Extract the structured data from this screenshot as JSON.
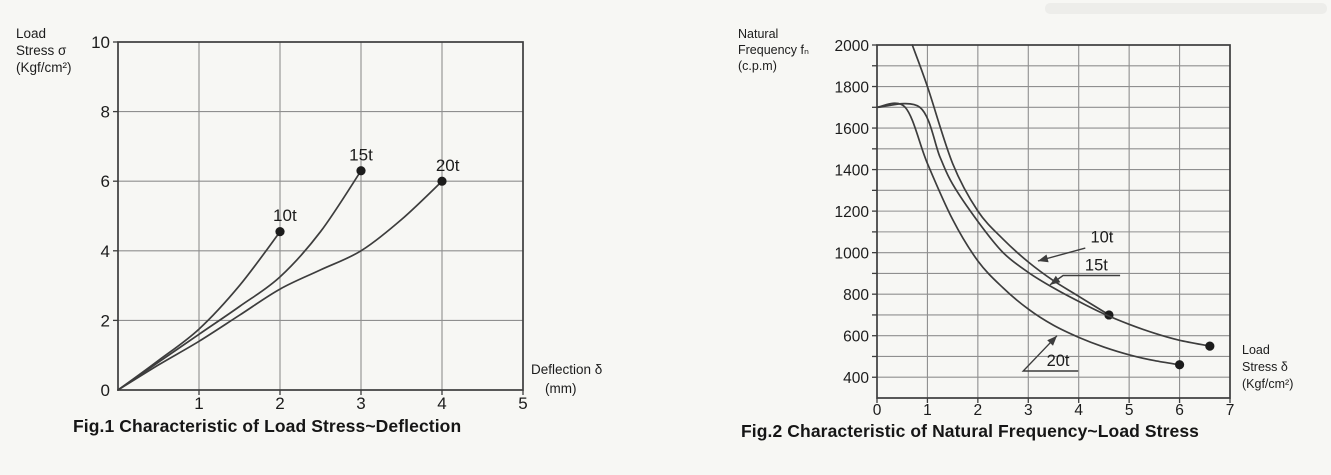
{
  "palette": {
    "ink": "#3d3d3d",
    "grid": "#8f8f8f",
    "text": "#1c1c1c",
    "dot": "#1c1c1c",
    "paper": "#f7f7f4"
  },
  "chart_data": [
    {
      "id": "load-stress-deflection",
      "type": "line",
      "caption": "Fig.1 Characteristic of Load Stress~Deflection",
      "x_axis": {
        "title_lines": [
          "Deflection δ",
          "(mm)"
        ],
        "min": 0,
        "max": 5,
        "tick_labels": [
          1,
          2,
          3,
          4,
          5
        ],
        "gridlines": [
          1,
          2,
          3,
          4
        ]
      },
      "y_axis": {
        "title_lines": [
          "Load",
          "Stress σ",
          "(Kgf/cm²)"
        ],
        "min": 0,
        "max": 10,
        "tick_labels": [
          0,
          2,
          4,
          6,
          8,
          10
        ],
        "tick_marks": [
          2,
          4,
          6,
          8,
          10
        ],
        "gridlines": [
          2,
          4,
          6,
          8
        ]
      },
      "series": [
        {
          "name": "10t",
          "points": [
            [
              0,
              0
            ],
            [
              0.5,
              0.85
            ],
            [
              1,
              1.75
            ],
            [
              1.5,
              3.0
            ],
            [
              2,
              4.55
            ]
          ],
          "end_dot": true,
          "label": {
            "x": 2.06,
            "y": 4.85
          }
        },
        {
          "name": "15t",
          "points": [
            [
              0,
              0
            ],
            [
              0.5,
              0.8
            ],
            [
              1,
              1.6
            ],
            [
              1.5,
              2.4
            ],
            [
              2,
              3.25
            ],
            [
              2.5,
              4.55
            ],
            [
              3,
              6.3
            ]
          ],
          "end_dot": true,
          "label": {
            "x": 3.0,
            "y": 6.6
          }
        },
        {
          "name": "20t",
          "points": [
            [
              0,
              0
            ],
            [
              0.5,
              0.72
            ],
            [
              1,
              1.4
            ],
            [
              1.5,
              2.15
            ],
            [
              2,
              2.9
            ],
            [
              2.5,
              3.45
            ],
            [
              3,
              4.0
            ],
            [
              3.5,
              4.9
            ],
            [
              4,
              6.0
            ]
          ],
          "end_dot": true,
          "label": {
            "x": 4.07,
            "y": 6.3
          }
        }
      ]
    },
    {
      "id": "natural-frequency-load-stress",
      "type": "line",
      "caption": "Fig.2 Characteristic of Natural Frequency~Load Stress",
      "x_axis": {
        "title_lines": [
          "Load",
          "Stress δ",
          "(Kgf/cm²)"
        ],
        "min": 0,
        "max": 7,
        "tick_labels": [
          0,
          1,
          2,
          3,
          4,
          5,
          6,
          7
        ],
        "gridlines": [
          1,
          2,
          3,
          4,
          5,
          6
        ]
      },
      "y_axis": {
        "title_lines": [
          "Natural",
          "Frequency fₙ",
          "(c.p.m)"
        ],
        "min": 300,
        "max": 2000,
        "tick_labels": [
          400,
          600,
          800,
          1000,
          1200,
          1400,
          1600,
          1800,
          2000
        ],
        "tick_marks": [
          400,
          500,
          600,
          700,
          800,
          900,
          1000,
          1100,
          1200,
          1300,
          1400,
          1500,
          1600,
          1700,
          1800,
          1900,
          2000
        ],
        "gridlines": [
          400,
          500,
          600,
          700,
          800,
          900,
          1000,
          1100,
          1200,
          1300,
          1400,
          1500,
          1600,
          1700,
          1800,
          1900
        ]
      },
      "series": [
        {
          "name": "10t",
          "points": [
            [
              0.7,
              2000
            ],
            [
              1,
              1800
            ],
            [
              1.5,
              1430
            ],
            [
              2,
              1200
            ],
            [
              2.5,
              1065
            ],
            [
              3,
              955
            ],
            [
              3.5,
              865
            ],
            [
              4,
              790
            ],
            [
              4.6,
              700
            ]
          ],
          "end_dot": true,
          "callout": {
            "text": {
              "x": 4.46,
              "y": 1050
            },
            "line": [
              [
                4.13,
                1022
              ],
              [
                3.19,
                960
              ]
            ]
          }
        },
        {
          "name": "15t",
          "points": [
            [
              0,
              1700
            ],
            [
              0.85,
              1700
            ],
            [
              1.25,
              1460
            ],
            [
              1.5,
              1330
            ],
            [
              2,
              1150
            ],
            [
              2.5,
              1000
            ],
            [
              3,
              905
            ],
            [
              3.5,
              830
            ],
            [
              4,
              765
            ],
            [
              4.5,
              705
            ],
            [
              5,
              655
            ],
            [
              5.5,
              612
            ],
            [
              6,
              578
            ],
            [
              6.6,
              550
            ]
          ],
          "end_dot": true,
          "callout": {
            "text": {
              "x": 4.35,
              "y": 915
            },
            "line": [
              [
                4.82,
                890
              ],
              [
                3.69,
                890
              ],
              [
                3.43,
                845
              ]
            ]
          }
        },
        {
          "name": "20t",
          "points": [
            [
              0,
              1700
            ],
            [
              0.56,
              1700
            ],
            [
              1,
              1430
            ],
            [
              1.5,
              1160
            ],
            [
              2,
              960
            ],
            [
              2.5,
              830
            ],
            [
              3,
              728
            ],
            [
              3.5,
              650
            ],
            [
              4,
              592
            ],
            [
              4.5,
              545
            ],
            [
              5,
              508
            ],
            [
              5.5,
              480
            ],
            [
              6,
              460
            ]
          ],
          "end_dot": true,
          "callout": {
            "text": {
              "x": 3.59,
              "y": 455
            },
            "line": [
              [
                3.99,
                430
              ],
              [
                2.9,
                430
              ],
              [
                3.57,
                600
              ]
            ]
          }
        }
      ]
    }
  ]
}
